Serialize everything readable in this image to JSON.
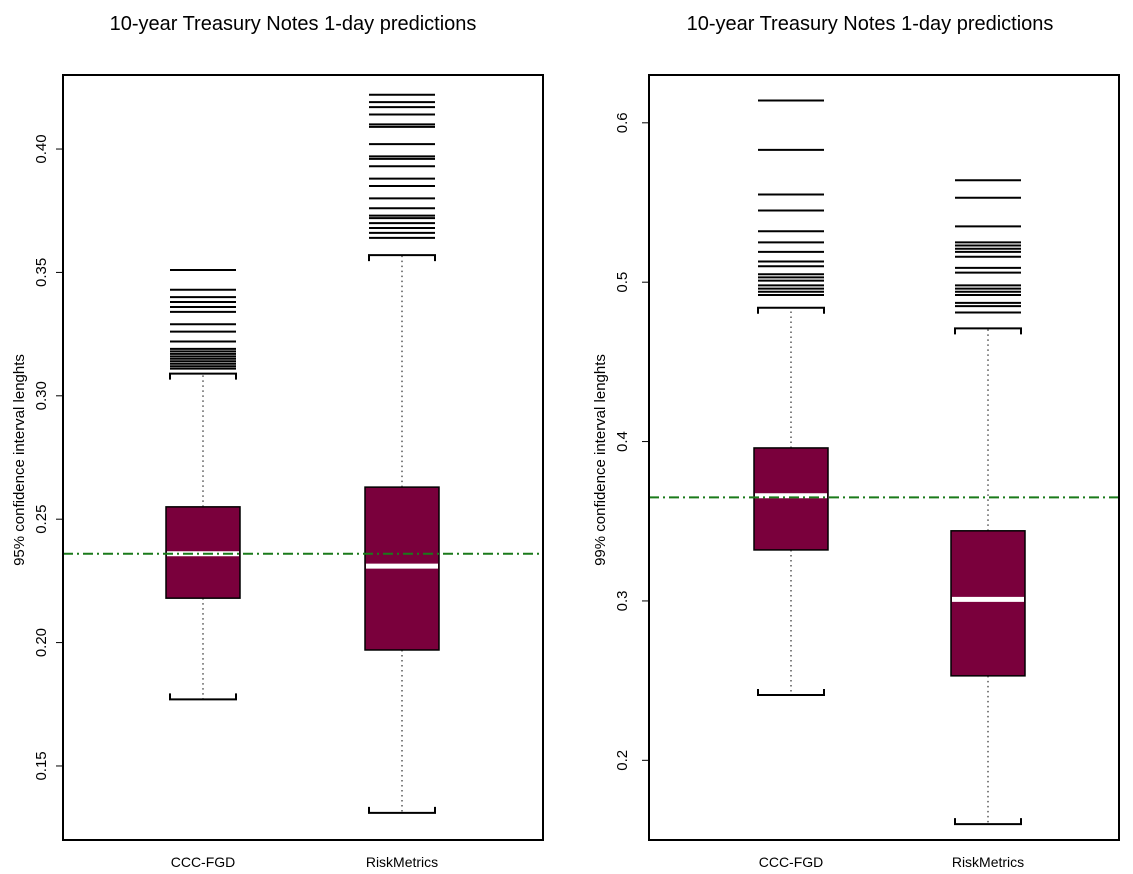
{
  "chart_data": [
    {
      "type": "box",
      "title": "10-year Treasury Notes 1-day predictions",
      "xlabel": "",
      "ylabel": "95% confidence interval lenghts",
      "categories": [
        "CCC-FGD",
        "RiskMetrics"
      ],
      "ylim": [
        0.12,
        0.43
      ],
      "yticks": [
        0.15,
        0.2,
        0.25,
        0.3,
        0.35,
        0.4
      ],
      "ytick_labels": [
        "0.15",
        "0.20",
        "0.25",
        "0.30",
        "0.35",
        "0.40"
      ],
      "reference_line": {
        "y": 0.236,
        "style": "dash-dot",
        "color": "#1a7a1a"
      },
      "box_color": "#7a003c",
      "median_color": "#ffffff",
      "boxes": [
        {
          "label": "CCC-FGD",
          "whisker_low": 0.177,
          "q1": 0.218,
          "median": 0.236,
          "q3": 0.255,
          "whisker_high": 0.309,
          "outliers": [
            0.311,
            0.312,
            0.313,
            0.314,
            0.315,
            0.316,
            0.317,
            0.318,
            0.319,
            0.322,
            0.326,
            0.329,
            0.334,
            0.336,
            0.338,
            0.34,
            0.343,
            0.351
          ]
        },
        {
          "label": "RiskMetrics",
          "whisker_low": 0.131,
          "q1": 0.197,
          "median": 0.231,
          "q3": 0.263,
          "whisker_high": 0.357,
          "outliers": [
            0.364,
            0.366,
            0.368,
            0.37,
            0.372,
            0.373,
            0.376,
            0.38,
            0.385,
            0.388,
            0.393,
            0.396,
            0.397,
            0.402,
            0.409,
            0.41,
            0.414,
            0.417,
            0.419,
            0.422
          ]
        }
      ]
    },
    {
      "type": "box",
      "title": "10-year Treasury Notes 1-day predictions",
      "xlabel": "",
      "ylabel": "99% confidence interval lenghts",
      "categories": [
        "CCC-FGD",
        "RiskMetrics"
      ],
      "ylim": [
        0.15,
        0.63
      ],
      "yticks": [
        0.2,
        0.3,
        0.4,
        0.5,
        0.6
      ],
      "ytick_labels": [
        "0.2",
        "0.3",
        "0.4",
        "0.5",
        "0.6"
      ],
      "reference_line": {
        "y": 0.365,
        "style": "dash-dot",
        "color": "#1a7a1a"
      },
      "box_color": "#7a003c",
      "median_color": "#ffffff",
      "boxes": [
        {
          "label": "CCC-FGD",
          "whisker_low": 0.241,
          "q1": 0.332,
          "median": 0.366,
          "q3": 0.396,
          "whisker_high": 0.484,
          "outliers": [
            0.492,
            0.494,
            0.496,
            0.498,
            0.501,
            0.503,
            0.505,
            0.51,
            0.513,
            0.519,
            0.525,
            0.532,
            0.545,
            0.555,
            0.583,
            0.614
          ]
        },
        {
          "label": "RiskMetrics",
          "whisker_low": 0.16,
          "q1": 0.253,
          "median": 0.301,
          "q3": 0.344,
          "whisker_high": 0.471,
          "outliers": [
            0.481,
            0.485,
            0.487,
            0.492,
            0.494,
            0.496,
            0.498,
            0.506,
            0.509,
            0.516,
            0.519,
            0.521,
            0.523,
            0.525,
            0.535,
            0.553,
            0.564
          ]
        }
      ]
    }
  ]
}
